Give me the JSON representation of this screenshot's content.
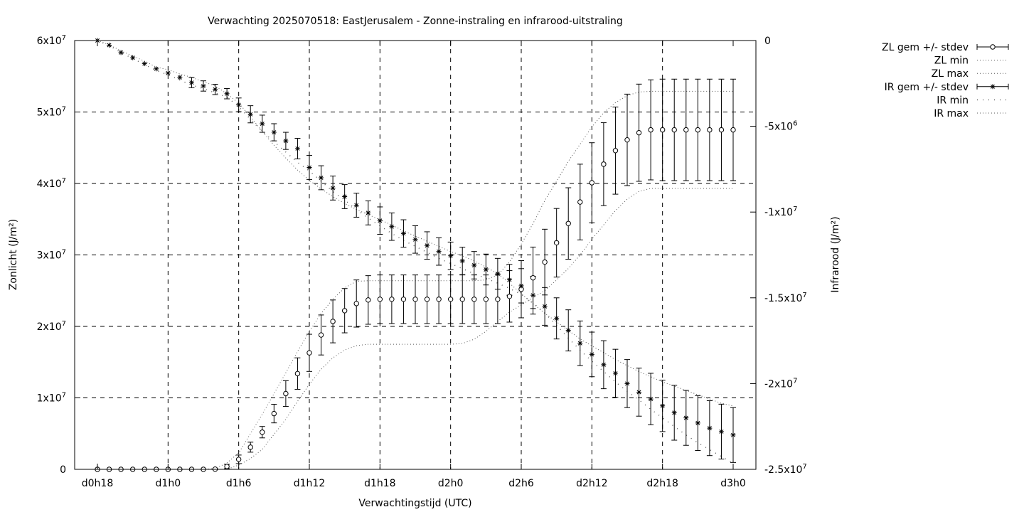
{
  "chart_data": {
    "type": "line",
    "title": "Verwachting 2025070518: EastJerusalem - Zonne-instraling en infrarood-uitstraling",
    "xlabel": "Verwachtingstijd (UTC)",
    "ylabel": "Zonlicht (J/m²)",
    "y2label": "Infrarood (J/m²)",
    "grid": true,
    "legend_position": "outside-top-right",
    "x_unit": "hours since d0h18",
    "x_range": [
      0,
      54
    ],
    "ylim": [
      0,
      60000000
    ],
    "y2lim": [
      -25000000,
      0
    ],
    "x_ticks": [
      {
        "x": 0,
        "label": "d0h18"
      },
      {
        "x": 6,
        "label": "d1h0"
      },
      {
        "x": 12,
        "label": "d1h6"
      },
      {
        "x": 18,
        "label": "d1h12"
      },
      {
        "x": 24,
        "label": "d1h18"
      },
      {
        "x": 30,
        "label": "d2h0"
      },
      {
        "x": 36,
        "label": "d2h6"
      },
      {
        "x": 42,
        "label": "d2h12"
      },
      {
        "x": 48,
        "label": "d2h18"
      },
      {
        "x": 54,
        "label": "d3h0"
      }
    ],
    "y_ticks": [
      {
        "v": 0,
        "base": "0",
        "exp": ""
      },
      {
        "v": 10000000,
        "base": "1x10",
        "exp": "7"
      },
      {
        "v": 20000000,
        "base": "2x10",
        "exp": "7"
      },
      {
        "v": 30000000,
        "base": "3x10",
        "exp": "7"
      },
      {
        "v": 40000000,
        "base": "4x10",
        "exp": "7"
      },
      {
        "v": 50000000,
        "base": "5x10",
        "exp": "7"
      },
      {
        "v": 60000000,
        "base": "6x10",
        "exp": "7"
      }
    ],
    "y2_ticks": [
      {
        "v": 0,
        "base": "0",
        "exp": ""
      },
      {
        "v": -5000000,
        "base": "-5x10",
        "exp": "6"
      },
      {
        "v": -10000000,
        "base": "-1x10",
        "exp": "7"
      },
      {
        "v": -15000000,
        "base": "-1.5x10",
        "exp": "7"
      },
      {
        "v": -20000000,
        "base": "-2x10",
        "exp": "7"
      },
      {
        "v": -25000000,
        "base": "-2.5x10",
        "exp": "7"
      }
    ],
    "series": [
      {
        "name": "ZL gem +/- stdev",
        "axis": "y",
        "marker": "circle",
        "x": [
          0,
          1,
          2,
          3,
          4,
          5,
          6,
          7,
          8,
          9,
          10,
          11,
          12,
          13,
          14,
          15,
          16,
          17,
          18,
          19,
          20,
          21,
          22,
          23,
          24,
          25,
          26,
          27,
          28,
          29,
          30,
          31,
          32,
          33,
          34,
          35,
          36,
          37,
          38,
          39,
          40,
          41,
          42,
          43,
          44,
          45,
          46,
          47,
          48,
          49,
          50,
          51,
          52,
          53,
          54
        ],
        "values": [
          0,
          0,
          0,
          0,
          0,
          0,
          0,
          0,
          0,
          0,
          30000,
          400000,
          1400000,
          3100000,
          5200000,
          7800000,
          10600000,
          13400000,
          16300000,
          18800000,
          20700000,
          22200000,
          23200000,
          23700000,
          23800000,
          23800000,
          23800000,
          23800000,
          23800000,
          23800000,
          23800000,
          23800000,
          23800000,
          23800000,
          23800000,
          24200000,
          25200000,
          26800000,
          29000000,
          31700000,
          34400000,
          37400000,
          40100000,
          42700000,
          44600000,
          46100000,
          47100000,
          47500000,
          47500000,
          47500000,
          47500000,
          47500000,
          47500000,
          47500000,
          47500000
        ],
        "stdev": [
          0,
          0,
          0,
          0,
          0,
          0,
          0,
          0,
          0,
          0,
          50000,
          300000,
          600000,
          700000,
          800000,
          1300000,
          1800000,
          2200000,
          2600000,
          2800000,
          3000000,
          3100000,
          3300000,
          3400000,
          3400000,
          3400000,
          3400000,
          3400000,
          3400000,
          3400000,
          3400000,
          3400000,
          3400000,
          3400000,
          3400000,
          3600000,
          4000000,
          4300000,
          4600000,
          4800000,
          5000000,
          5300000,
          5600000,
          5800000,
          6100000,
          6400000,
          6800000,
          7000000,
          7100000,
          7100000,
          7100000,
          7100000,
          7100000,
          7100000,
          7100000
        ]
      },
      {
        "name": "ZL min",
        "axis": "y",
        "style": "dotted",
        "x": [
          0,
          1,
          2,
          3,
          4,
          5,
          6,
          7,
          8,
          9,
          10,
          11,
          12,
          13,
          14,
          15,
          16,
          17,
          18,
          19,
          20,
          21,
          22,
          23,
          24,
          25,
          26,
          27,
          28,
          29,
          30,
          31,
          32,
          33,
          34,
          35,
          36,
          37,
          38,
          39,
          40,
          41,
          42,
          43,
          44,
          45,
          46,
          47,
          48,
          49,
          50,
          51,
          52,
          53,
          54
        ],
        "values": [
          0,
          0,
          0,
          0,
          0,
          0,
          0,
          0,
          0,
          0,
          0,
          0,
          600000,
          1500000,
          2800000,
          4900000,
          7000000,
          9500000,
          11900000,
          14000000,
          15600000,
          16700000,
          17300000,
          17500000,
          17500000,
          17500000,
          17500000,
          17500000,
          17500000,
          17500000,
          17500000,
          17600000,
          18200000,
          19300000,
          20700000,
          22000000,
          23000000,
          24000000,
          25000000,
          26500000,
          28100000,
          30000000,
          32200000,
          34200000,
          36200000,
          37800000,
          38900000,
          39300000,
          39300000,
          39300000,
          39300000,
          39300000,
          39300000,
          39300000,
          39300000
        ]
      },
      {
        "name": "ZL max",
        "axis": "y",
        "style": "dotted",
        "x": [
          0,
          1,
          2,
          3,
          4,
          5,
          6,
          7,
          8,
          9,
          10,
          11,
          12,
          13,
          14,
          15,
          16,
          17,
          18,
          19,
          20,
          21,
          22,
          23,
          24,
          25,
          26,
          27,
          28,
          29,
          30,
          31,
          32,
          33,
          34,
          35,
          36,
          37,
          38,
          39,
          40,
          41,
          42,
          43,
          44,
          45,
          46,
          47,
          48,
          49,
          50,
          51,
          52,
          53,
          54
        ],
        "values": [
          0,
          0,
          0,
          0,
          0,
          0,
          0,
          0,
          0,
          0,
          100000,
          900000,
          2300000,
          5000000,
          7700000,
          10600000,
          13500000,
          16500000,
          19300000,
          21800000,
          23800000,
          25400000,
          26300000,
          26400000,
          26400000,
          26400000,
          26400000,
          26400000,
          26400000,
          26400000,
          26400000,
          26400000,
          26400000,
          26500000,
          27200000,
          29000000,
          31500000,
          34400000,
          37600000,
          40300000,
          43100000,
          45500000,
          47900000,
          49900000,
          51300000,
          52300000,
          52800000,
          52900000,
          52900000,
          52900000,
          52900000,
          52900000,
          52900000,
          52900000,
          52900000
        ]
      },
      {
        "name": "IR gem +/- stdev",
        "axis": "y2",
        "marker": "star",
        "x": [
          0,
          1,
          2,
          3,
          4,
          5,
          6,
          7,
          8,
          9,
          10,
          11,
          12,
          13,
          14,
          15,
          16,
          17,
          18,
          19,
          20,
          21,
          22,
          23,
          24,
          25,
          26,
          27,
          28,
          29,
          30,
          31,
          32,
          33,
          34,
          35,
          36,
          37,
          38,
          39,
          40,
          41,
          42,
          43,
          44,
          45,
          46,
          47,
          48,
          49,
          50,
          51,
          52,
          53,
          54
        ],
        "values": [
          0,
          -270000,
          -700000,
          -1000000,
          -1350000,
          -1650000,
          -1900000,
          -2150000,
          -2450000,
          -2650000,
          -2850000,
          -3100000,
          -3750000,
          -4300000,
          -4850000,
          -5350000,
          -5850000,
          -6300000,
          -7400000,
          -8000000,
          -8600000,
          -9100000,
          -9600000,
          -10050000,
          -10500000,
          -10850000,
          -11250000,
          -11600000,
          -11950000,
          -12300000,
          -12550000,
          -12850000,
          -13100000,
          -13350000,
          -13600000,
          -13950000,
          -14300000,
          -14850000,
          -15500000,
          -16200000,
          -16900000,
          -17650000,
          -18300000,
          -18900000,
          -19400000,
          -20000000,
          -20500000,
          -20900000,
          -21300000,
          -21700000,
          -22000000,
          -22300000,
          -22600000,
          -22800000,
          -23000000
        ],
        "stdev": [
          0,
          0,
          0,
          0,
          0,
          0,
          0,
          0,
          300000,
          300000,
          300000,
          300000,
          400000,
          500000,
          500000,
          500000,
          500000,
          600000,
          700000,
          700000,
          700000,
          700000,
          700000,
          700000,
          800000,
          800000,
          800000,
          800000,
          800000,
          800000,
          800000,
          800000,
          800000,
          900000,
          900000,
          900000,
          1000000,
          1100000,
          1100000,
          1200000,
          1200000,
          1300000,
          1300000,
          1400000,
          1400000,
          1400000,
          1400000,
          1500000,
          1500000,
          1600000,
          1600000,
          1600000,
          1600000,
          1600000,
          1600000
        ]
      },
      {
        "name": "IR min",
        "axis": "y2",
        "style": "dotted-coarse",
        "x": [
          0,
          1,
          2,
          3,
          4,
          5,
          6,
          7,
          8,
          9,
          10,
          11,
          12,
          13,
          14,
          15,
          16,
          17,
          18,
          19,
          20,
          21,
          22,
          23,
          24,
          25,
          26,
          27,
          28,
          29,
          30,
          31,
          32,
          33,
          34,
          35,
          36,
          37,
          38,
          39,
          40,
          41,
          42,
          43,
          44,
          45,
          46,
          47,
          48,
          49,
          50,
          51,
          52,
          53,
          54
        ],
        "values": [
          0,
          -300000,
          -700000,
          -1050000,
          -1400000,
          -1750000,
          -2000000,
          -2300000,
          -2600000,
          -2800000,
          -3050000,
          -3300000,
          -3850000,
          -4600000,
          -5300000,
          -5900000,
          -6500000,
          -7100000,
          -7600000,
          -8200000,
          -8800000,
          -9300000,
          -9850000,
          -10350000,
          -10800000,
          -11250000,
          -11650000,
          -12000000,
          -12350000,
          -12700000,
          -13000000,
          -13300000,
          -13600000,
          -13850000,
          -14150000,
          -14450000,
          -14800000,
          -15300000,
          -15900000,
          -16600000,
          -17350000,
          -18050000,
          -18700000,
          -19300000,
          -19900000,
          -20450000,
          -20950000,
          -21500000,
          -22000000,
          -22500000,
          -23000000,
          -23450000,
          -23850000,
          -24250000,
          -24650000
        ]
      },
      {
        "name": "IR max",
        "axis": "y2",
        "style": "dotted",
        "x": [
          0,
          1,
          2,
          3,
          4,
          5,
          6,
          7,
          8,
          9,
          10,
          11,
          12,
          13,
          14,
          15,
          16,
          17,
          18,
          19,
          20,
          21,
          22,
          23,
          24,
          25,
          26,
          27,
          28,
          29,
          30,
          31,
          32,
          33,
          34,
          35,
          36,
          37,
          38,
          39,
          40,
          41,
          42,
          43,
          44,
          45,
          46,
          47,
          48,
          49,
          50,
          51,
          52,
          53,
          54
        ],
        "values": [
          0,
          -250000,
          -600000,
          -900000,
          -1200000,
          -1550000,
          -1700000,
          -1950000,
          -2150000,
          -2400000,
          -2650000,
          -3100000,
          -3650000,
          -4450000,
          -5300000,
          -6100000,
          -6850000,
          -7550000,
          -8150000,
          -8650000,
          -9100000,
          -9500000,
          -9850000,
          -10150000,
          -10450000,
          -10750000,
          -11100000,
          -11400000,
          -11700000,
          -12000000,
          -12300000,
          -12550000,
          -12850000,
          -13200000,
          -13600000,
          -14150000,
          -14750000,
          -15350000,
          -15900000,
          -16400000,
          -16900000,
          -17400000,
          -17800000,
          -18200000,
          -18600000,
          -18950000,
          -19300000,
          -19600000,
          -19900000,
          -20150000,
          -20400000,
          -20650000,
          -20900000,
          -21150000,
          -21300000
        ]
      }
    ]
  }
}
